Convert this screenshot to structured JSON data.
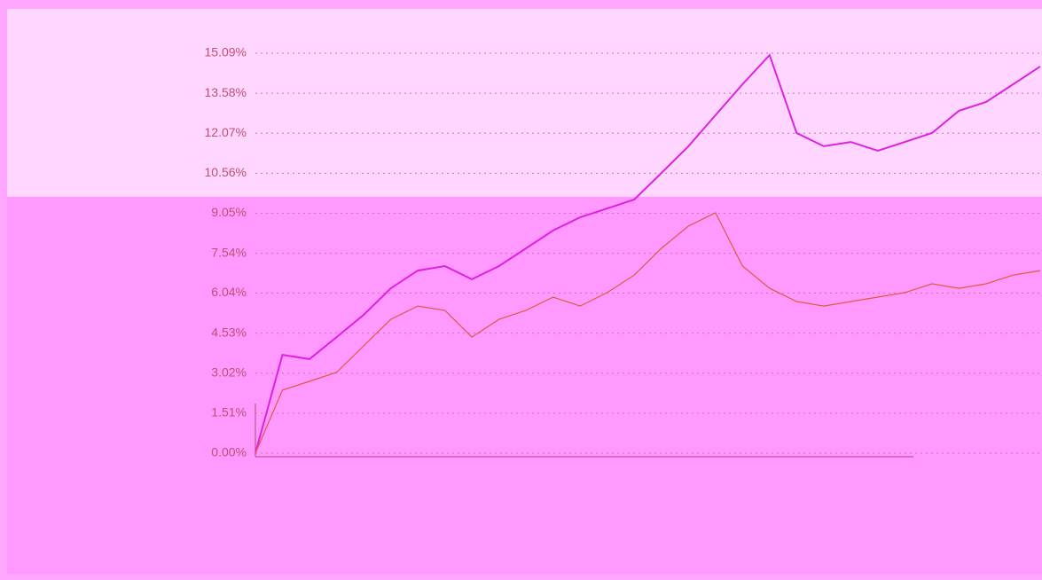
{
  "chart_data": {
    "type": "line",
    "series": [
      {
        "color": "#e020e0",
        "values": [
          0,
          3.71,
          3.55,
          4.38,
          5.22,
          6.22,
          6.89,
          7.06,
          6.56,
          7.06,
          7.73,
          8.4,
          8.9,
          9.23,
          9.57,
          10.57,
          11.58,
          12.75,
          13.92,
          15.02,
          12.08,
          11.58,
          11.74,
          11.41,
          11.74,
          12.08,
          12.92,
          13.25,
          13.92,
          14.59
        ]
      },
      {
        "color": "#e05a40",
        "values": [
          0,
          2.38,
          2.71,
          3.05,
          4.05,
          5.05,
          5.55,
          5.39,
          4.38,
          5.05,
          5.39,
          5.89,
          5.55,
          6.06,
          6.72,
          7.73,
          8.57,
          9.07,
          7.06,
          6.22,
          5.72,
          5.55,
          5.72,
          5.89,
          6.06,
          6.39,
          6.22,
          6.39,
          6.72,
          6.89
        ]
      }
    ],
    "ylim": [
      0,
      15.09
    ],
    "yticks": [
      {
        "value": 0,
        "label": "0.00%"
      },
      {
        "value": 1.51,
        "label": "1.51%"
      },
      {
        "value": 3.02,
        "label": "3.02%"
      },
      {
        "value": 4.53,
        "label": "4.53%"
      },
      {
        "value": 6.04,
        "label": "6.04%"
      },
      {
        "value": 7.54,
        "label": "7.54%"
      },
      {
        "value": 9.05,
        "label": "9.05%"
      },
      {
        "value": 10.56,
        "label": "10.56%"
      },
      {
        "value": 12.07,
        "label": "12.07%"
      },
      {
        "value": 13.58,
        "label": "13.58%"
      },
      {
        "value": 15.09,
        "label": "15.09%"
      }
    ],
    "grid": true
  }
}
